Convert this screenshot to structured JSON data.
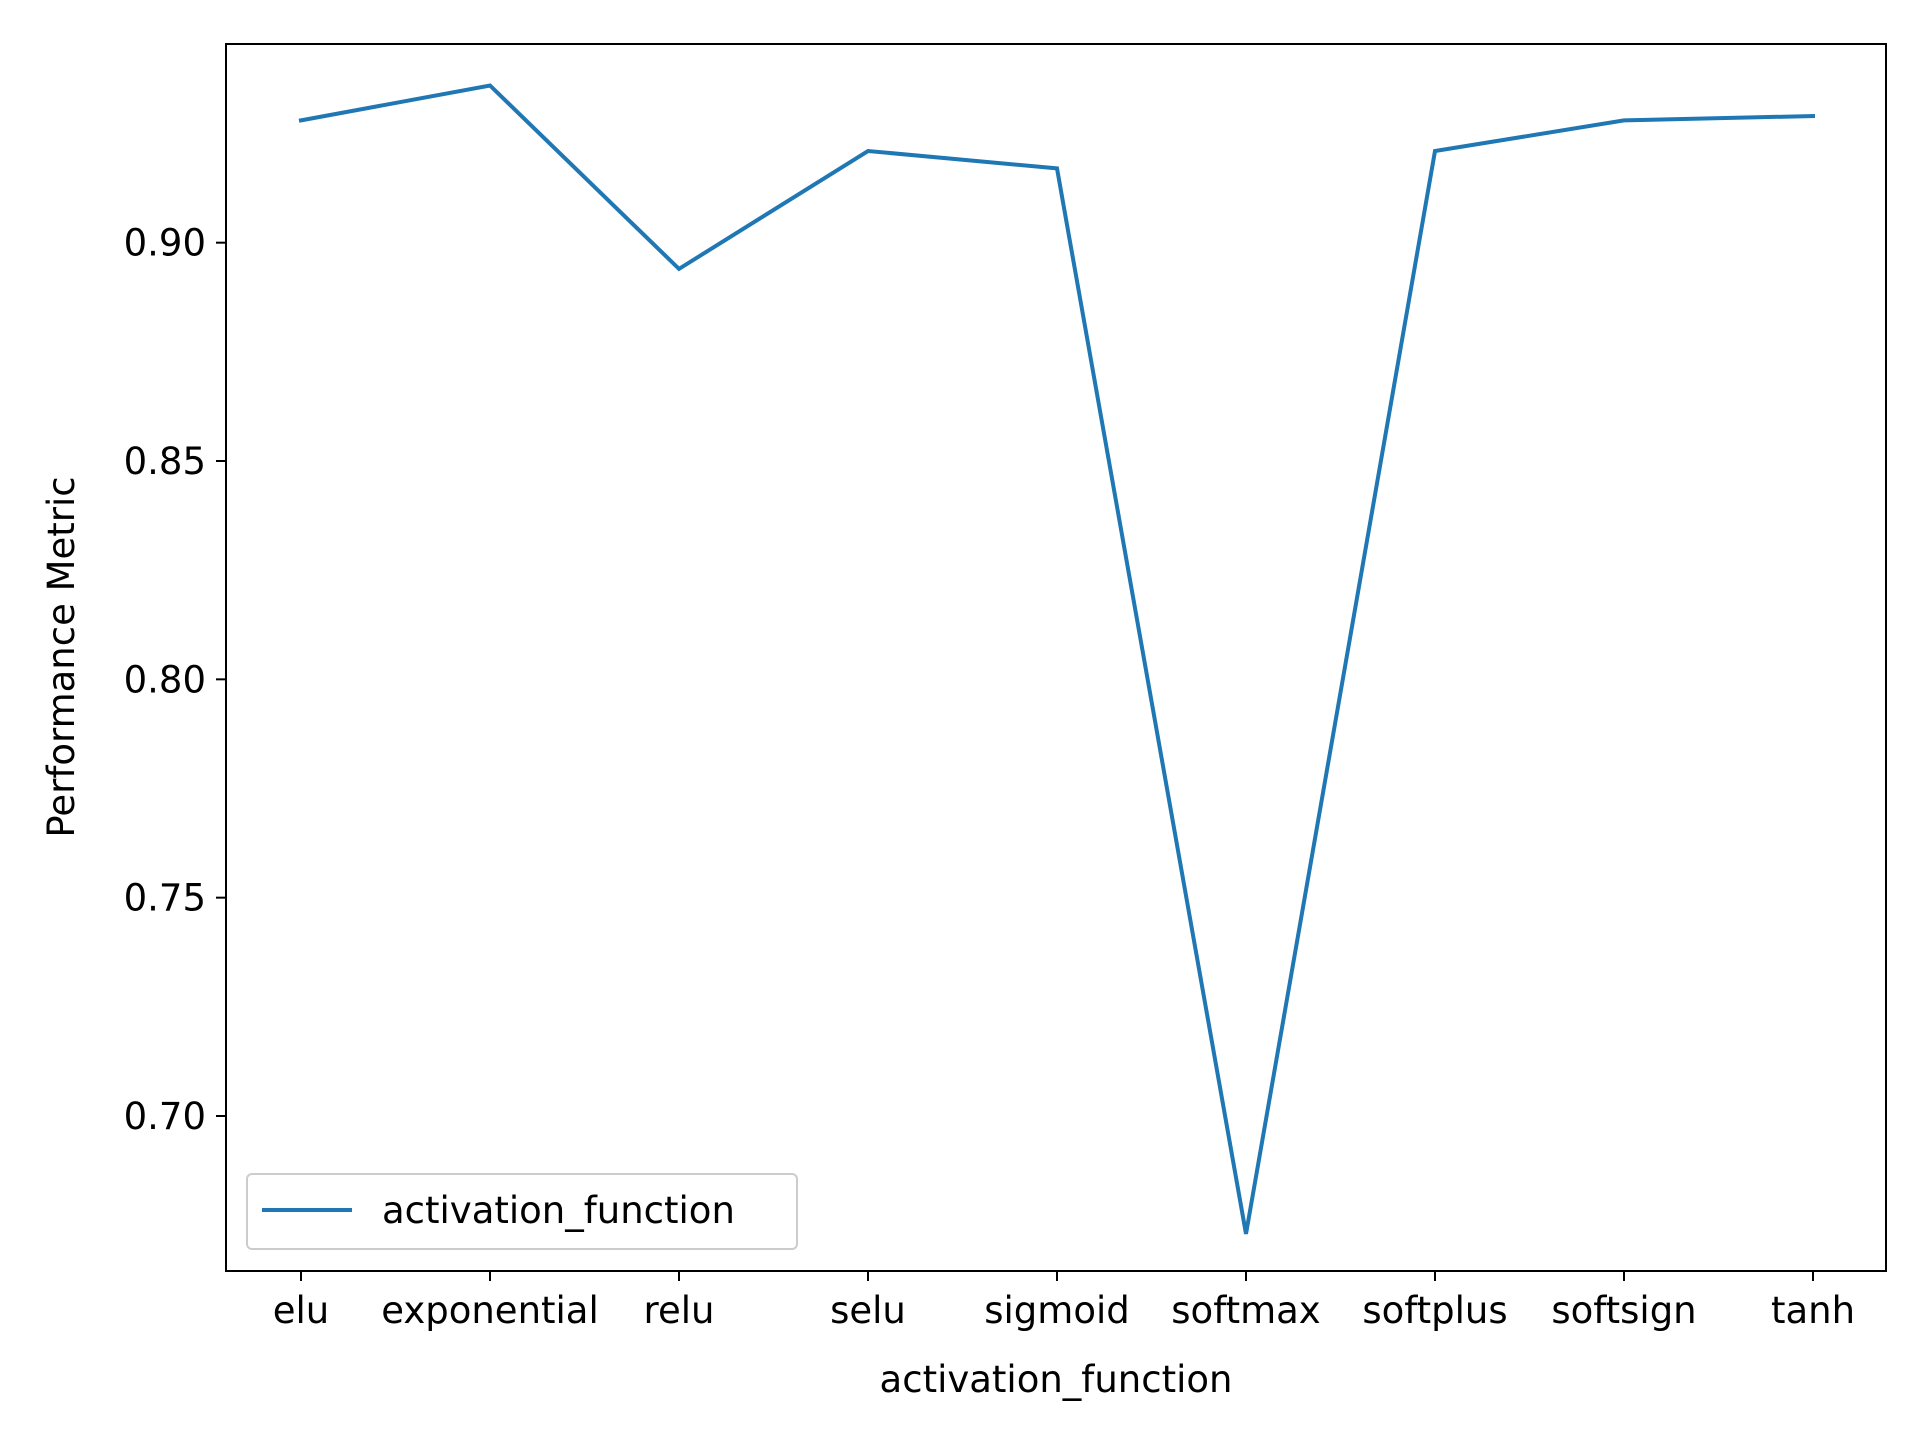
{
  "chart_data": {
    "type": "line",
    "categories": [
      "elu",
      "exponential",
      "relu",
      "selu",
      "sigmoid",
      "softmax",
      "softplus",
      "softsign",
      "tanh"
    ],
    "series": [
      {
        "name": "activation_function",
        "values": [
          0.928,
          0.936,
          0.894,
          0.921,
          0.917,
          0.673,
          0.921,
          0.928,
          0.929
        ],
        "color": "#1f77b4"
      }
    ],
    "title": "",
    "xlabel": "activation_function",
    "ylabel": "Performance Metric",
    "ylim": [
      0.6645,
      0.9455
    ],
    "yticks": [
      "0.70",
      "0.75",
      "0.80",
      "0.85",
      "0.90"
    ],
    "grid": false,
    "legend_position": "lower-left"
  }
}
